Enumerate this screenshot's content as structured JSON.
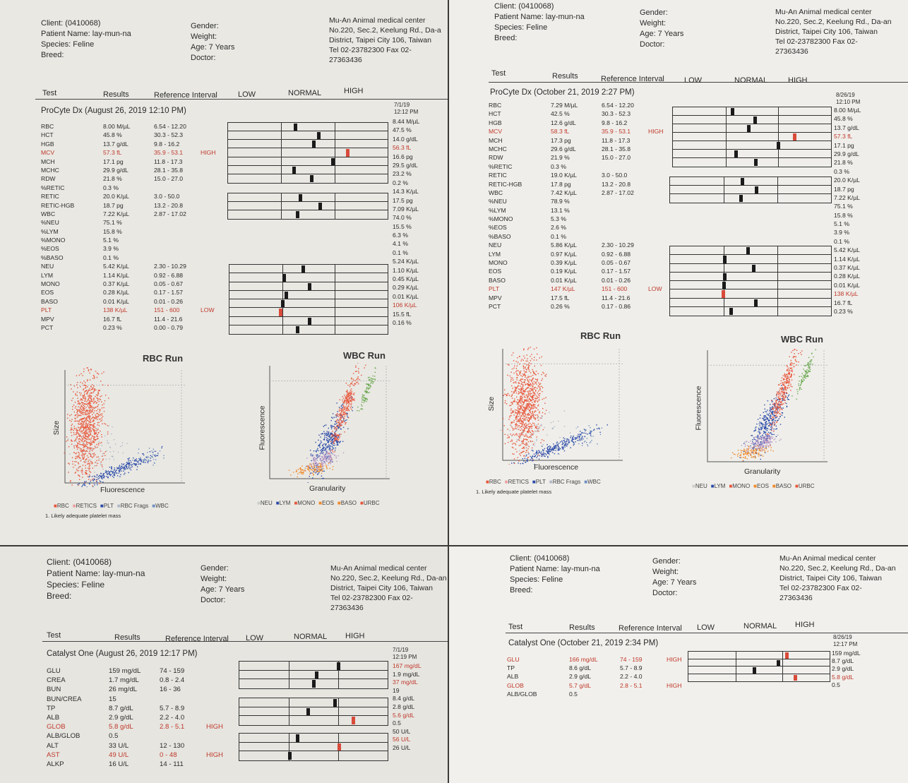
{
  "photos": [
    {
      "client": "Client:  (0410068)",
      "patient": "Patient Name: lay-mun-na",
      "species": "Species: Feline",
      "breed": "Breed:",
      "gender": "Gender:",
      "weight": "Weight:",
      "age": "Age: 7 Years",
      "doctor": "Doctor:",
      "clinic_name": "Mu-An Animal medical center",
      "clinic_addr1": "No.220, Sec.2, Keelung Rd., Da-a",
      "clinic_addr2": "District, Taipei City 106, Taiwan",
      "clinic_tel": "Tel 02-23782300  Fax 02-",
      "clinic_fax": "27363436",
      "col_test": "Test",
      "col_results": "Results",
      "col_ref": "Reference Interval",
      "col_low": "LOW",
      "col_normal": "NORMAL",
      "col_high": "HIGH",
      "panel": "ProCyte Dx (August 26, 2019 12:10 PM)",
      "prev_date": "7/1/19",
      "prev_time": "12:12 PM",
      "rows": [
        {
          "name": "RBC",
          "result": "8.00 M/µL",
          "ref": "6.54 - 12.20",
          "flag": "",
          "prev": "8.44 M/µL"
        },
        {
          "name": "HCT",
          "result": "45.8 %",
          "ref": "30.3 - 52.3",
          "flag": "",
          "prev": "47.5 %"
        },
        {
          "name": "HGB",
          "result": "13.7 g/dL",
          "ref": "9.8 - 16.2",
          "flag": "",
          "prev": "14.0 g/dL"
        },
        {
          "name": "MCV",
          "result": "57.3 fL",
          "ref": "35.9 - 53.1",
          "flag": "HIGH",
          "prev": "56.3 fL"
        },
        {
          "name": "MCH",
          "result": "17.1 pg",
          "ref": "11.8 - 17.3",
          "flag": "",
          "prev": "16.6 pg"
        },
        {
          "name": "MCHC",
          "result": "29.9 g/dL",
          "ref": "28.1 - 35.8",
          "flag": "",
          "prev": "29.5 g/dL"
        },
        {
          "name": "RDW",
          "result": "21.8 %",
          "ref": "15.0 - 27.0",
          "flag": "",
          "prev": "23.2 %"
        },
        {
          "name": "%RETIC",
          "result": "0.3 %",
          "ref": "",
          "flag": "",
          "prev": "0.2 %"
        },
        {
          "name": "RETIC",
          "result": "20.0 K/µL",
          "ref": "3.0 - 50.0",
          "flag": "",
          "prev": "14.3 K/µL"
        },
        {
          "name": "RETIC-HGB",
          "result": "18.7 pg",
          "ref": "13.2 - 20.8",
          "flag": "",
          "prev": "17.5 pg"
        },
        {
          "name": "WBC",
          "result": "7.22 K/µL",
          "ref": "2.87 - 17.02",
          "flag": "",
          "prev": "7.09 K/µL"
        },
        {
          "name": "%NEU",
          "result": "75.1 %",
          "ref": "",
          "flag": "",
          "prev": "74.0 %"
        },
        {
          "name": "%LYM",
          "result": "15.8 %",
          "ref": "",
          "flag": "",
          "prev": "15.5 %"
        },
        {
          "name": "%MONO",
          "result": "5.1 %",
          "ref": "",
          "flag": "",
          "prev": "6.3 %"
        },
        {
          "name": "%EOS",
          "result": "3.9 %",
          "ref": "",
          "flag": "",
          "prev": "4.1 %"
        },
        {
          "name": "%BASO",
          "result": "0.1 %",
          "ref": "",
          "flag": "",
          "prev": "0.1 %"
        },
        {
          "name": "NEU",
          "result": "5.42 K/µL",
          "ref": "2.30 - 10.29",
          "flag": "",
          "prev": "5.24 K/µL"
        },
        {
          "name": "LYM",
          "result": "1.14 K/µL",
          "ref": "0.92 - 6.88",
          "flag": "",
          "prev": "1.10 K/µL"
        },
        {
          "name": "MONO",
          "result": "0.37 K/µL",
          "ref": "0.05 - 0.67",
          "flag": "",
          "prev": "0.45 K/µL"
        },
        {
          "name": "EOS",
          "result": "0.28 K/µL",
          "ref": "0.17 - 1.57",
          "flag": "",
          "prev": "0.29 K/µL"
        },
        {
          "name": "BASO",
          "result": "0.01 K/µL",
          "ref": "0.01 - 0.26",
          "flag": "",
          "prev": "0.01 K/µL"
        },
        {
          "name": "PLT",
          "result": "138 K/µL",
          "ref": "151 - 600",
          "flag": "LOW",
          "prev": "106 K/µL"
        },
        {
          "name": "MPV",
          "result": "16.7 fL",
          "ref": "11.4 - 21.6",
          "flag": "",
          "prev": "15.5 fL"
        },
        {
          "name": "PCT",
          "result": "0.23 %",
          "ref": "0.00 - 0.79",
          "flag": "",
          "prev": "0.16 %"
        }
      ],
      "rbc_title": "RBC Run",
      "rbc_xlabel": "Fluorescence",
      "rbc_ylabel": "Size",
      "rbc_legend": [
        "RBC",
        "RETICS",
        "PLT",
        "RBC Frags",
        "WBC"
      ],
      "wbc_title": "WBC Run",
      "wbc_xlabel": "Granularity",
      "wbc_ylabel": "Fluorescence",
      "wbc_legend": [
        "NEU",
        "LYM",
        "MONO",
        "EOS",
        "BASO",
        "URBC"
      ],
      "note": "1. Likely adequate platelet mass"
    },
    {
      "client": "Client:  (0410068)",
      "patient": "Patient Name: lay-mun-na",
      "species": "Species: Feline",
      "breed": "Breed:",
      "gender": "Gender:",
      "weight": "Weight:",
      "age": "Age: 7 Years",
      "doctor": "Doctor:",
      "clinic_name": "Mu-An Animal medical center",
      "clinic_addr1": "No.220, Sec.2, Keelung Rd., Da-an",
      "clinic_addr2": "District, Taipei City 106, Taiwan",
      "clinic_tel": "Tel 02-23782300  Fax 02-",
      "clinic_fax": "27363436",
      "col_test": "Test",
      "col_results": "Results",
      "col_ref": "Reference Interval",
      "col_low": "LOW",
      "col_normal": "NORMAL",
      "col_high": "HIGH",
      "panel": "ProCyte Dx (October 21, 2019 2:27 PM)",
      "prev_date": "8/26/19",
      "prev_time": "12:10 PM",
      "rows": [
        {
          "name": "RBC",
          "result": "7.29 M/µL",
          "ref": "6.54 - 12.20",
          "flag": "",
          "prev": "8.00 M/µL"
        },
        {
          "name": "HCT",
          "result": "42.5 %",
          "ref": "30.3 - 52.3",
          "flag": "",
          "prev": "45.8 %"
        },
        {
          "name": "HGB",
          "result": "12.6 g/dL",
          "ref": "9.8 - 16.2",
          "flag": "",
          "prev": "13.7 g/dL"
        },
        {
          "name": "MCV",
          "result": "58.3 fL",
          "ref": "35.9 - 53.1",
          "flag": "HIGH",
          "prev": "57.3 fL"
        },
        {
          "name": "MCH",
          "result": "17.3 pg",
          "ref": "11.8 - 17.3",
          "flag": "",
          "prev": "17.1 pg"
        },
        {
          "name": "MCHC",
          "result": "29.6 g/dL",
          "ref": "28.1 - 35.8",
          "flag": "",
          "prev": "29.9 g/dL"
        },
        {
          "name": "RDW",
          "result": "21.9 %",
          "ref": "15.0 - 27.0",
          "flag": "",
          "prev": "21.8 %"
        },
        {
          "name": "%RETIC",
          "result": "0.3 %",
          "ref": "",
          "flag": "",
          "prev": "0.3 %"
        },
        {
          "name": "RETIC",
          "result": "19.0 K/µL",
          "ref": "3.0 - 50.0",
          "flag": "",
          "prev": "20.0 K/µL"
        },
        {
          "name": "RETIC-HGB",
          "result": "17.8 pg",
          "ref": "13.2 - 20.8",
          "flag": "",
          "prev": "18.7 pg"
        },
        {
          "name": "WBC",
          "result": "7.42 K/µL",
          "ref": "2.87 - 17.02",
          "flag": "",
          "prev": "7.22 K/µL"
        },
        {
          "name": "%NEU",
          "result": "78.9 %",
          "ref": "",
          "flag": "",
          "prev": "75.1 %"
        },
        {
          "name": "%LYM",
          "result": "13.1 %",
          "ref": "",
          "flag": "",
          "prev": "15.8 %"
        },
        {
          "name": "%MONO",
          "result": "5.3 %",
          "ref": "",
          "flag": "",
          "prev": "5.1 %"
        },
        {
          "name": "%EOS",
          "result": "2.6 %",
          "ref": "",
          "flag": "",
          "prev": "3.9 %"
        },
        {
          "name": "%BASO",
          "result": "0.1 %",
          "ref": "",
          "flag": "",
          "prev": "0.1 %"
        },
        {
          "name": "NEU",
          "result": "5.86 K/µL",
          "ref": "2.30 - 10.29",
          "flag": "",
          "prev": "5.42 K/µL"
        },
        {
          "name": "LYM",
          "result": "0.97 K/µL",
          "ref": "0.92 - 6.88",
          "flag": "",
          "prev": "1.14 K/µL"
        },
        {
          "name": "MONO",
          "result": "0.39 K/µL",
          "ref": "0.05 - 0.67",
          "flag": "",
          "prev": "0.37 K/µL"
        },
        {
          "name": "EOS",
          "result": "0.19 K/µL",
          "ref": "0.17 - 1.57",
          "flag": "",
          "prev": "0.28 K/µL"
        },
        {
          "name": "BASO",
          "result": "0.01 K/µL",
          "ref": "0.01 - 0.26",
          "flag": "",
          "prev": "0.01 K/µL"
        },
        {
          "name": "PLT",
          "result": "147 K/µL",
          "ref": "151 - 600",
          "flag": "LOW",
          "prev": "138 K/µL"
        },
        {
          "name": "MPV",
          "result": "17.5 fL",
          "ref": "11.4 - 21.6",
          "flag": "",
          "prev": "16.7 fL"
        },
        {
          "name": "PCT",
          "result": "0.26 %",
          "ref": "0.17 - 0.86",
          "flag": "",
          "prev": "0.23 %"
        }
      ],
      "rbc_title": "RBC Run",
      "rbc_xlabel": "Fluorescence",
      "rbc_ylabel": "Size",
      "rbc_legend": [
        "RBC",
        "RETICS",
        "PLT",
        "RBC Frags",
        "WBC"
      ],
      "wbc_title": "WBC Run",
      "wbc_xlabel": "Granularity",
      "wbc_ylabel": "Fluorescence",
      "wbc_legend": [
        "NEU",
        "LYM",
        "MONO",
        "EOS",
        "BASO",
        "URBC"
      ],
      "note": "1. Likely adequate platelet mass"
    },
    {
      "client": "Client:  (0410068)",
      "patient": "Patient Name: lay-mun-na",
      "species": "Species: Feline",
      "breed": "Breed:",
      "gender": "Gender:",
      "weight": "Weight:",
      "age": "Age: 7 Years",
      "doctor": "Doctor:",
      "clinic_name": "Mu-An Animal medical center",
      "clinic_addr1": "No.220, Sec.2, Keelung Rd., Da-an",
      "clinic_addr2": "District, Taipei City 106, Taiwan",
      "clinic_tel": "Tel 02-23782300  Fax 02-",
      "clinic_fax": "27363436",
      "col_test": "Test",
      "col_results": "Results",
      "col_ref": "Reference Interval",
      "col_low": "LOW",
      "col_normal": "NORMAL",
      "col_high": "HIGH",
      "panel": "Catalyst One (August 26, 2019 12:17 PM)",
      "prev_date": "7/1/19",
      "prev_time": "12:19 PM",
      "rows": [
        {
          "name": "GLU",
          "result": "159 mg/dL",
          "ref": "74 - 159",
          "flag": "",
          "prev": "167 mg/dL"
        },
        {
          "name": "CREA",
          "result": "1.7 mg/dL",
          "ref": "0.8 - 2.4",
          "flag": "",
          "prev": "1.9 mg/dL"
        },
        {
          "name": "BUN",
          "result": "26 mg/dL",
          "ref": "16 - 36",
          "flag": "",
          "prev": "37 mg/dL"
        },
        {
          "name": "BUN/CREA",
          "result": "15",
          "ref": "",
          "flag": "",
          "prev": "19"
        },
        {
          "name": "TP",
          "result": "8.7 g/dL",
          "ref": "5.7 - 8.9",
          "flag": "",
          "prev": "8.4 g/dL"
        },
        {
          "name": "ALB",
          "result": "2.9 g/dL",
          "ref": "2.2 - 4.0",
          "flag": "",
          "prev": "2.8 g/dL"
        },
        {
          "name": "GLOB",
          "result": "5.8 g/dL",
          "ref": "2.8 - 5.1",
          "flag": "HIGH",
          "prev": "5.6 g/dL"
        },
        {
          "name": "ALB/GLOB",
          "result": "0.5",
          "ref": "",
          "flag": "",
          "prev": "0.5"
        },
        {
          "name": "ALT",
          "result": "33 U/L",
          "ref": "12 - 130",
          "flag": "",
          "prev": "50 U/L"
        },
        {
          "name": "AST",
          "result": "49 U/L",
          "ref": "0 - 48",
          "flag": "HIGH",
          "prev": "56 U/L"
        },
        {
          "name": "ALKP",
          "result": "16 U/L",
          "ref": "14 - 111",
          "flag": "",
          "prev": "26 U/L"
        }
      ]
    },
    {
      "client": "Client:  (0410068)",
      "patient": "Patient Name: lay-mun-na",
      "species": "Species: Feline",
      "breed": "Breed:",
      "gender": "Gender:",
      "weight": "Weight:",
      "age": "Age: 7 Years",
      "doctor": "Doctor:",
      "clinic_name": "Mu-An Animal medical center",
      "clinic_addr1": "No.220, Sec.2, Keelung Rd., Da-an",
      "clinic_addr2": "District, Taipei City 106, Taiwan",
      "clinic_tel": "Tel 02-23782300  Fax 02-",
      "clinic_fax": "27363436",
      "col_test": "Test",
      "col_results": "Results",
      "col_ref": "Reference Interval",
      "col_low": "LOW",
      "col_normal": "NORMAL",
      "col_high": "HIGH",
      "panel": "Catalyst One (October 21, 2019 2:34 PM)",
      "prev_date": "8/26/19",
      "prev_time": "12:17 PM",
      "rows": [
        {
          "name": "GLU",
          "result": "166 mg/dL",
          "ref": "74 - 159",
          "flag": "HIGH",
          "prev": "159 mg/dL"
        },
        {
          "name": "TP",
          "result": "8.6 g/dL",
          "ref": "5.7 - 8.9",
          "flag": "",
          "prev": "8.7 g/dL"
        },
        {
          "name": "ALB",
          "result": "2.9 g/dL",
          "ref": "2.2 - 4.0",
          "flag": "",
          "prev": "2.9 g/dL"
        },
        {
          "name": "GLOB",
          "result": "5.7 g/dL",
          "ref": "2.8 - 5.1",
          "flag": "HIGH",
          "prev": "5.8 g/dL"
        },
        {
          "name": "ALB/GLOB",
          "result": "0.5",
          "ref": "",
          "flag": "",
          "prev": "0.5"
        }
      ]
    }
  ],
  "colors": {
    "flag_red": "#c0392b",
    "rbc": "#e8553a",
    "retics": "#e8a0a0",
    "plt": "#2a4aa8",
    "rbc_frags": "#b0b8c8",
    "wbc_dot": "#7090c0",
    "neu": "#e8553a",
    "lym": "#2a4aa8",
    "mono": "#b89ac8",
    "eos": "#f08a2a",
    "baso": "#cccccc",
    "urbc": "#6aa84f"
  }
}
